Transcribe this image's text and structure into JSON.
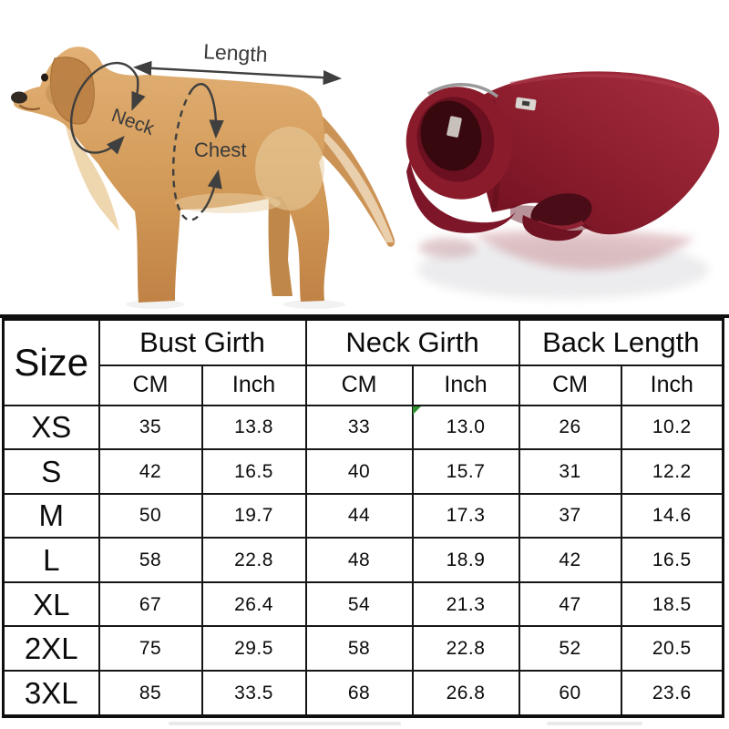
{
  "diagram": {
    "length_label": "Length",
    "neck_label": "Neck",
    "chest_label": "Chest"
  },
  "table": {
    "size_header": "Size",
    "groups": [
      {
        "label": "Bust Girth"
      },
      {
        "label": "Neck Girth"
      },
      {
        "label": "Back Length"
      }
    ],
    "unit_headers": [
      "CM",
      "Inch",
      "CM",
      "Inch",
      "CM",
      "Inch"
    ],
    "rows": [
      {
        "size": "XS",
        "values": [
          "35",
          "13.8",
          "33",
          "13.0",
          "26",
          "10.2"
        ]
      },
      {
        "size": "S",
        "values": [
          "42",
          "16.5",
          "40",
          "15.7",
          "31",
          "12.2"
        ]
      },
      {
        "size": "M",
        "values": [
          "50",
          "19.7",
          "44",
          "17.3",
          "37",
          "14.6"
        ]
      },
      {
        "size": "L",
        "values": [
          "58",
          "22.8",
          "48",
          "18.9",
          "42",
          "16.5"
        ]
      },
      {
        "size": "XL",
        "values": [
          "67",
          "26.4",
          "54",
          "21.3",
          "47",
          "18.5"
        ]
      },
      {
        "size": "2XL",
        "values": [
          "75",
          "29.5",
          "58",
          "22.8",
          "52",
          "20.5"
        ]
      },
      {
        "size": "3XL",
        "values": [
          "85",
          "33.5",
          "68",
          "26.8",
          "60",
          "23.6"
        ]
      }
    ]
  },
  "colors": {
    "jacket_red": "#8e1e2e",
    "jacket_dark": "#5a0e1c",
    "dog_coat": "#d7a163",
    "dog_light": "#ecd2a6",
    "annotation_gray": "#3f3f3f",
    "table_border": "#161616",
    "green_marker": "#2f8f2f"
  }
}
